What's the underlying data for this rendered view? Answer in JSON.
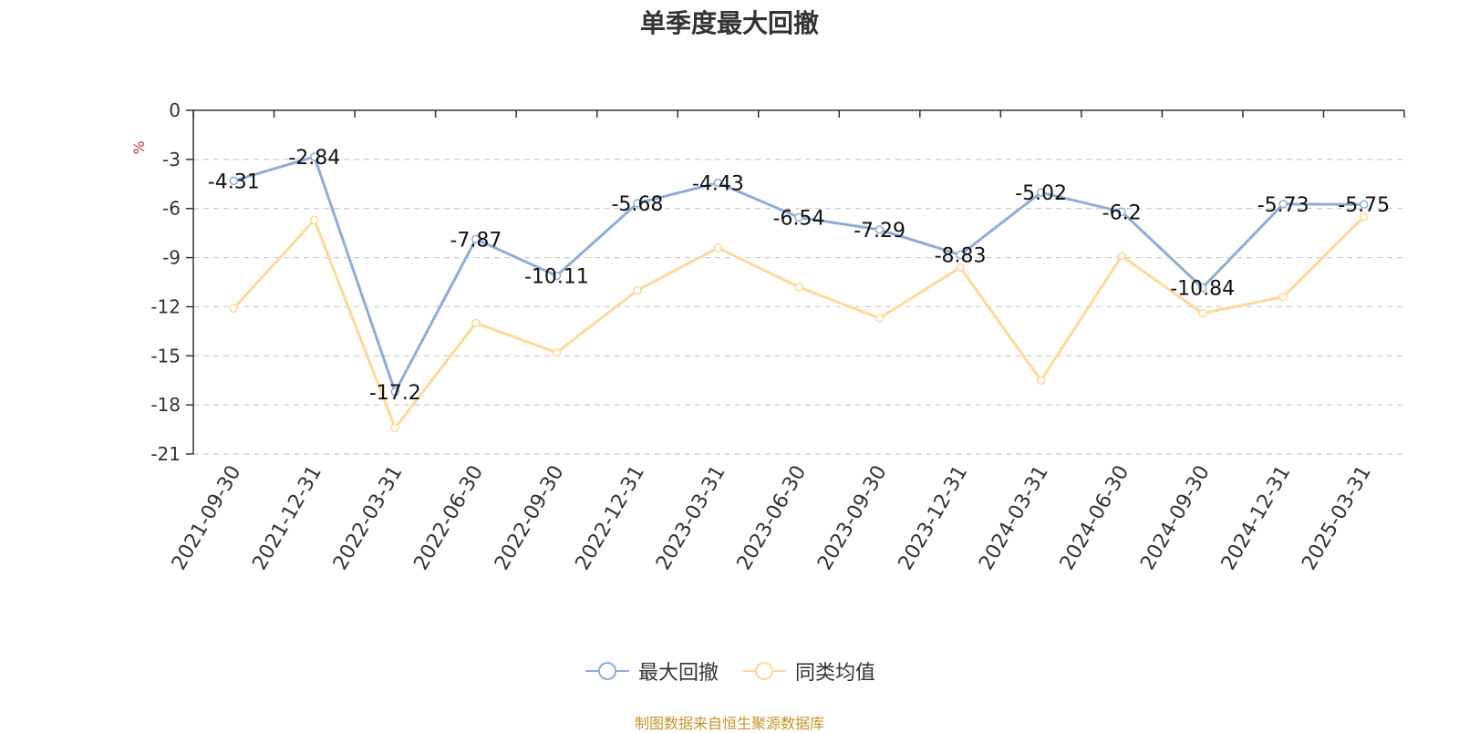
{
  "colors": {
    "series1": "#8eadd9",
    "series2": "#fdd998",
    "grid": "#cccccc",
    "axis": "#333333",
    "title": "#333333",
    "unit": "#e03030",
    "footer": "#c8922a"
  },
  "footer_text": "制图数据来自恒生聚源数据库",
  "chart_data": {
    "type": "line",
    "title": "单季度最大回撤",
    "ylabel": "%",
    "ylim": [
      -21,
      0
    ],
    "yticks": [
      0,
      -3,
      -6,
      -9,
      -12,
      -15,
      -18,
      -21
    ],
    "grid": true,
    "legend_position": "bottom",
    "categories": [
      "2021-09-30",
      "2021-12-31",
      "2022-03-31",
      "2022-06-30",
      "2022-09-30",
      "2022-12-31",
      "2023-03-31",
      "2023-06-30",
      "2023-09-30",
      "2023-12-31",
      "2024-03-31",
      "2024-06-30",
      "2024-09-30",
      "2024-12-31",
      "2025-03-31"
    ],
    "series": [
      {
        "name": "最大回撤",
        "values": [
          -4.31,
          -2.84,
          -17.2,
          -7.87,
          -10.11,
          -5.68,
          -4.43,
          -6.54,
          -7.29,
          -8.83,
          -5.02,
          -6.2,
          -10.84,
          -5.73,
          -5.75
        ],
        "labels": [
          "-4.31",
          "-2.84",
          "-17.2",
          "-7.87",
          "-10.11",
          "-5.68",
          "-4.43",
          "-6.54",
          "-7.29",
          "-8.83",
          "-5.02",
          "-6.2",
          "-10.84",
          "-5.73",
          "-5.75"
        ]
      },
      {
        "name": "同类均值",
        "values": [
          -12.1,
          -6.7,
          -19.4,
          -13.0,
          -14.8,
          -11.0,
          -8.4,
          -10.8,
          -12.7,
          -9.6,
          -16.5,
          -8.9,
          -12.4,
          -11.4,
          -6.5
        ]
      }
    ]
  }
}
